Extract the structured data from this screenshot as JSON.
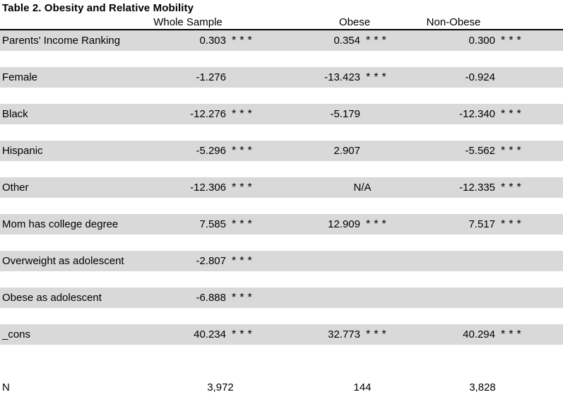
{
  "title": "Table 2. Obesity and Relative Mobility",
  "columns": {
    "whole": "Whole Sample",
    "obese": "Obese",
    "non_obese": "Non-Obese"
  },
  "rows": [
    {
      "label": "Parents' Income Ranking",
      "whole": "0.303",
      "whole_sig": "***",
      "obese": "0.354",
      "obese_sig": "***",
      "non": "0.300",
      "non_sig": "***"
    },
    {
      "label": "Female",
      "whole": "-1.276",
      "whole_sig": "",
      "obese": "-13.423",
      "obese_sig": "***",
      "non": "-0.924",
      "non_sig": ""
    },
    {
      "label": "Black",
      "whole": "-12.276",
      "whole_sig": "***",
      "obese": "-5.179",
      "obese_sig": "",
      "non": "-12.340",
      "non_sig": "***"
    },
    {
      "label": "Hispanic",
      "whole": "-5.296",
      "whole_sig": "***",
      "obese": "2.907",
      "obese_sig": "",
      "non": "-5.562",
      "non_sig": "***"
    },
    {
      "label": "Other",
      "whole": "-12.306",
      "whole_sig": "***",
      "obese": "N/A",
      "obese_sig": "",
      "non": "-12.335",
      "non_sig": "***"
    },
    {
      "label": "Mom has college degree",
      "whole": "7.585",
      "whole_sig": "***",
      "obese": "12.909",
      "obese_sig": "***",
      "non": "7.517",
      "non_sig": "***"
    },
    {
      "label": "Overweight as adolescent",
      "whole": "-2.807",
      "whole_sig": "***",
      "obese": "",
      "obese_sig": "",
      "non": "",
      "non_sig": ""
    },
    {
      "label": "Obese as adolescent",
      "whole": "-6.888",
      "whole_sig": "***",
      "obese": "",
      "obese_sig": "",
      "non": "",
      "non_sig": ""
    },
    {
      "label": "_cons",
      "whole": "40.234",
      "whole_sig": "***",
      "obese": "32.773",
      "obese_sig": "***",
      "non": "40.294",
      "non_sig": "***"
    }
  ],
  "footer": {
    "label": "N",
    "whole": "3,972",
    "obese": "144",
    "non": "3,828"
  },
  "colors": {
    "row_shade": "#d9d9d9",
    "rule": "#000000",
    "text": "#000000",
    "background": "#ffffff"
  }
}
